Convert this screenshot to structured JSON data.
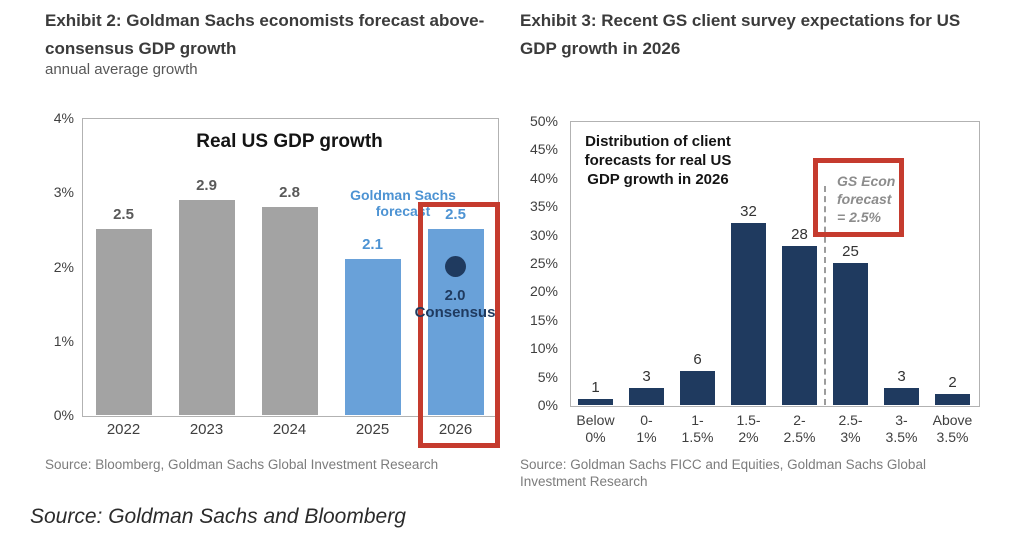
{
  "colors": {
    "gray_bar": "#a3a3a3",
    "blue_bar": "#69a1d9",
    "navy": "#1f3a5f",
    "blue_text": "#4d93d3",
    "red": "#c53b2e",
    "title_text": "#3b3b3b"
  },
  "exhibit2": {
    "title": "Exhibit 2: Goldman Sachs economists forecast above-\nconsensus GDP growth",
    "subtitle": "annual average growth",
    "source": "Source: Bloomberg, Goldman Sachs Global Investment Research",
    "forecast_annotation": "Goldman Sachs\nforecast",
    "consensus_value": "2.0",
    "consensus_label": "Consensus"
  },
  "exhibit3": {
    "title": "Exhibit 3: Recent GS client survey expectations for US\nGDP growth in 2026",
    "source": "Source: Goldman Sachs FICC and Equities, Goldman Sachs Global\nInvestment Research",
    "annotation": "Distribution of client\nforecasts for real US\nGDP growth in 2026",
    "callout": "GS Econ\nforecast\n= 2.5%"
  },
  "footer_source": "Source: Goldman Sachs and Bloomberg",
  "chart_data": [
    {
      "type": "bar",
      "title": "Real US GDP growth",
      "categories": [
        "2022",
        "2023",
        "2024",
        "2025",
        "2026"
      ],
      "values": [
        2.5,
        2.9,
        2.8,
        2.1,
        2.5
      ],
      "value_labels": [
        "2.5",
        "2.9",
        "2.8",
        "2.1",
        "2.5"
      ],
      "bar_styles": [
        "historical",
        "historical",
        "historical",
        "forecast",
        "forecast"
      ],
      "ylim": [
        0,
        4
      ],
      "ytick_step": 1,
      "ytick_suffix": "%",
      "grid": false,
      "legend_position": "none",
      "highlighted_category": "2026",
      "consensus_point": {
        "category": "2026",
        "value": 2.0,
        "label": "2.0 Consensus"
      },
      "forecast_annotation": "Goldman Sachs forecast"
    },
    {
      "type": "bar",
      "title": "Distribution of client forecasts for real US GDP growth in 2026",
      "categories": [
        "Below\n0%",
        "0-\n1%",
        "1-\n1.5%",
        "1.5-\n2%",
        "2-\n2.5%",
        "2.5-\n3%",
        "3-\n3.5%",
        "Above\n3.5%"
      ],
      "values": [
        1,
        3,
        6,
        32,
        28,
        25,
        3,
        2
      ],
      "value_labels": [
        "1",
        "3",
        "6",
        "32",
        "28",
        "25",
        "3",
        "2"
      ],
      "ylim": [
        0,
        50
      ],
      "ytick_step": 5,
      "ytick_suffix": "%",
      "grid": false,
      "legend_position": "none",
      "gs_forecast_line": {
        "label": "GS Econ forecast = 2.5%",
        "position_boundary_index": 5
      }
    }
  ]
}
